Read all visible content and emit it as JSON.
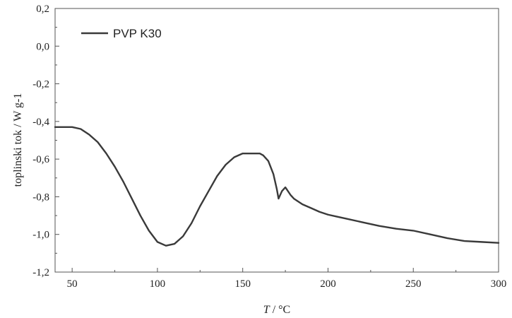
{
  "chart_data": {
    "type": "line",
    "title": "",
    "xlabel_italic": "T",
    "xlabel_rest": " / °C",
    "ylabel": "toplinski tok / W g-1",
    "xlim": [
      40,
      300
    ],
    "ylim": [
      -1.2,
      0.2
    ],
    "x_ticks": [
      50,
      100,
      150,
      200,
      250,
      300
    ],
    "x_tick_labels": [
      "50",
      "100",
      "150",
      "200",
      "250",
      "300"
    ],
    "y_ticks": [
      -1.2,
      -1.0,
      -0.8,
      -0.6,
      -0.4,
      -0.2,
      0.0,
      0.2
    ],
    "y_tick_labels": [
      "-1,2",
      "-1,0",
      "-0,8",
      "-0,6",
      "-0,4",
      "-0,2",
      "0,0",
      "0,2"
    ],
    "grid": false,
    "legend_position": "top-left",
    "line_color": "#3a3a3a",
    "series": [
      {
        "name": "PVP K30",
        "x": [
          40,
          45,
          50,
          55,
          60,
          65,
          70,
          75,
          80,
          85,
          90,
          95,
          100,
          105,
          110,
          115,
          120,
          125,
          130,
          135,
          140,
          145,
          150,
          155,
          160,
          162,
          165,
          168,
          170,
          171,
          172,
          173,
          175,
          178,
          180,
          185,
          190,
          195,
          200,
          205,
          210,
          220,
          230,
          240,
          250,
          260,
          270,
          280,
          290,
          300
        ],
        "y": [
          -0.43,
          -0.43,
          -0.43,
          -0.44,
          -0.47,
          -0.51,
          -0.57,
          -0.64,
          -0.72,
          -0.81,
          -0.9,
          -0.98,
          -1.04,
          -1.06,
          -1.05,
          -1.01,
          -0.94,
          -0.85,
          -0.77,
          -0.69,
          -0.63,
          -0.59,
          -0.57,
          -0.57,
          -0.57,
          -0.58,
          -0.61,
          -0.68,
          -0.76,
          -0.81,
          -0.79,
          -0.77,
          -0.75,
          -0.79,
          -0.81,
          -0.84,
          -0.86,
          -0.88,
          -0.895,
          -0.905,
          -0.915,
          -0.935,
          -0.955,
          -0.97,
          -0.98,
          -1.0,
          -1.02,
          -1.035,
          -1.04,
          -1.045
        ]
      }
    ]
  }
}
